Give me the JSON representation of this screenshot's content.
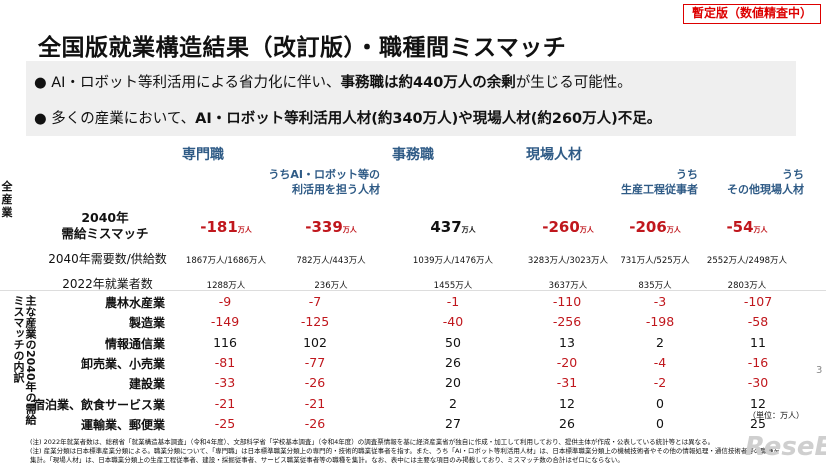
{
  "badge": "暫定版（数値精査中）",
  "title": "全国版就業構造結果（改訂版）・職種間ミスマッチ",
  "bullets": [
    {
      "pre": "AI・ロボット等利活用による省力化に伴い、",
      "bold": "事務職は約440万人の余剰",
      "post": "が生じる可能性。"
    },
    {
      "pre": "多くの産業において、",
      "bold": "AI・ロボット等利活用人材(約340万人)や現場人材(約260万人)不足。",
      "post": ""
    }
  ],
  "headers": [
    "専門職",
    "事務職",
    "現場人材"
  ],
  "subheaders": [
    [
      "うちAI・ロボット等の",
      "利活用を担う人材"
    ],
    [
      "うち",
      "生産工程従事者"
    ],
    [
      "うち",
      "その他現場人材"
    ]
  ],
  "side_label_all": "全産業",
  "side_label_industry": "主な産業の2040年の需給ミスマッチの内訳",
  "row_labels": {
    "mismatch": [
      "2040年",
      "需給ミスマッチ"
    ],
    "demand_supply": "2040年需要数/供給数",
    "employed": "2022年就業者数"
  },
  "unit_small": "万人",
  "mismatch": [
    {
      "v": "-181",
      "neg": true
    },
    {
      "v": "-339",
      "neg": true
    },
    {
      "v": "437",
      "neg": false
    },
    {
      "v": "-260",
      "neg": true
    },
    {
      "v": "-206",
      "neg": true
    },
    {
      "v": "-54",
      "neg": true
    }
  ],
  "demand_supply": [
    "1867万人/1686万人",
    "782万人/443万人",
    "1039万人/1476万人",
    "3283万人/3023万人",
    "731万人/525万人",
    "2552万人/2498万人"
  ],
  "employed": [
    "1288万人",
    "236万人",
    "1455万人",
    "3637万人",
    "835万人",
    "2803万人"
  ],
  "industries": [
    {
      "name": "農林水産業",
      "values": [
        "-9",
        "-7",
        "-1",
        "-110",
        "-3",
        "-107"
      ]
    },
    {
      "name": "製造業",
      "values": [
        "-149",
        "-125",
        "-40",
        "-256",
        "-198",
        "-58"
      ]
    },
    {
      "name": "情報通信業",
      "values": [
        "116",
        "102",
        "50",
        "13",
        "2",
        "11"
      ]
    },
    {
      "name": "卸売業、小売業",
      "values": [
        "-81",
        "-77",
        "26",
        "-20",
        "-4",
        "-16"
      ]
    },
    {
      "name": "建設業",
      "values": [
        "-33",
        "-26",
        "20",
        "-31",
        "-2",
        "-30"
      ]
    },
    {
      "name": "宿泊業、飲食サービス業",
      "values": [
        "-21",
        "-21",
        "2",
        "12",
        "0",
        "12"
      ]
    },
    {
      "name": "運輸業、郵便業",
      "values": [
        "-25",
        "-26",
        "27",
        "26",
        "0",
        "25"
      ]
    }
  ],
  "unit_note": "（単位：万人）",
  "notes": [
    "(注) 2022年就業者数は、総務省「就業構造基本調査」（令和4年度）、文部科学省「学校基本調査」（令和4年度）の調査票情報を基に経済産業省が独自に作成・加工して利用しており、提供主体が作成・公表している統計等とは異なる。",
    "(注) 産業分類は日本標準産業分類による。職業分類について、「専門職」は日本標準職業分類上の専門的・技術的職業従事者を指す。また、うち「AI・ロボット等利活用人材」は、日本標準職業分類上の機械技術者やその他の情報処理・通信技術者等の職種を",
    "集計。「現場人材」は、日本職業分類上の生産工程従事者、建設・採掘従事者、サービス職業従事者等の職種を集計。なお、表中には主要な項目のみ掲載しており、ミスマッチ数の合計はゼロにならない。"
  ],
  "page_number": "3",
  "logo": "ReseEd",
  "colors": {
    "accent": "#2f5b86",
    "negative": "#c0171d",
    "badge": "#dd0000"
  }
}
